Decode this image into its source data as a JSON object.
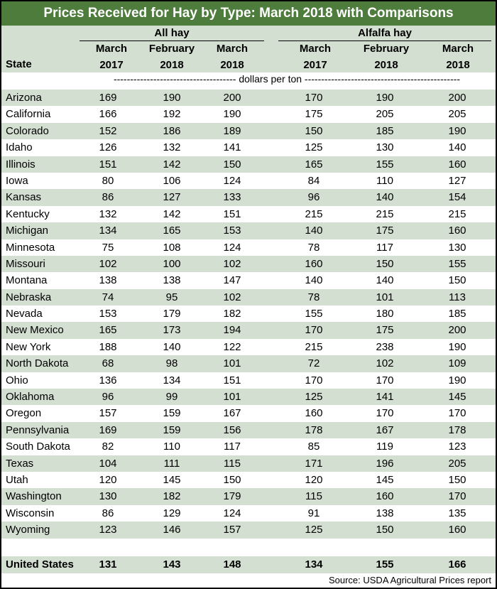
{
  "title": "Prices Received for Hay by Type: March 2018 with Comparisons",
  "groups": {
    "all_hay": "All hay",
    "alfalfa_hay": "Alfalfa hay"
  },
  "columns": {
    "state": "State",
    "c1": [
      "March",
      "2017"
    ],
    "c2": [
      "February",
      "2018"
    ],
    "c3": [
      "March",
      "2018"
    ],
    "c4": [
      "March",
      "2017"
    ],
    "c5": [
      "February",
      "2018"
    ],
    "c6": [
      "March",
      "2018"
    ]
  },
  "units": "------------------------------------- dollars per ton -----------------------------------------------",
  "rows": [
    [
      "Arizona",
      "169",
      "190",
      "200",
      "170",
      "190",
      "200"
    ],
    [
      "California",
      "166",
      "192",
      "190",
      "175",
      "205",
      "205"
    ],
    [
      "Colorado",
      "152",
      "186",
      "189",
      "150",
      "185",
      "190"
    ],
    [
      "Idaho",
      "126",
      "132",
      "141",
      "125",
      "130",
      "140"
    ],
    [
      "Illinois",
      "151",
      "142",
      "150",
      "165",
      "155",
      "160"
    ],
    [
      "Iowa",
      "80",
      "106",
      "124",
      "84",
      "110",
      "127"
    ],
    [
      "Kansas",
      "86",
      "127",
      "133",
      "96",
      "140",
      "154"
    ],
    [
      "Kentucky",
      "132",
      "142",
      "151",
      "215",
      "215",
      "215"
    ],
    [
      "Michigan",
      "134",
      "165",
      "153",
      "140",
      "175",
      "160"
    ],
    [
      "Minnesota",
      "75",
      "108",
      "124",
      "78",
      "117",
      "130"
    ],
    [
      "Missouri",
      "102",
      "100",
      "102",
      "160",
      "150",
      "155"
    ],
    [
      "Montana",
      "138",
      "138",
      "147",
      "140",
      "140",
      "150"
    ],
    [
      "Nebraska",
      "74",
      "95",
      "102",
      "78",
      "101",
      "113"
    ],
    [
      "Nevada",
      "153",
      "179",
      "182",
      "155",
      "180",
      "185"
    ],
    [
      "New Mexico",
      "165",
      "173",
      "194",
      "170",
      "175",
      "200"
    ],
    [
      "New York",
      "188",
      "140",
      "122",
      "215",
      "238",
      "190"
    ],
    [
      "North Dakota",
      "68",
      "98",
      "101",
      "72",
      "102",
      "109"
    ],
    [
      "Ohio",
      "136",
      "134",
      "151",
      "170",
      "170",
      "190"
    ],
    [
      "Oklahoma",
      "96",
      "99",
      "101",
      "125",
      "141",
      "145"
    ],
    [
      "Oregon",
      "157",
      "159",
      "167",
      "160",
      "170",
      "170"
    ],
    [
      "Pennsylvania",
      "169",
      "159",
      "156",
      "178",
      "167",
      "178"
    ],
    [
      "South Dakota",
      "82",
      "110",
      "117",
      "85",
      "119",
      "123"
    ],
    [
      "Texas",
      "104",
      "111",
      "115",
      "171",
      "196",
      "205"
    ],
    [
      "Utah",
      "120",
      "145",
      "150",
      "120",
      "145",
      "150"
    ],
    [
      "Washington",
      "130",
      "182",
      "179",
      "115",
      "160",
      "170"
    ],
    [
      "Wisconsin",
      "86",
      "129",
      "124",
      "91",
      "138",
      "135"
    ],
    [
      "Wyoming",
      "123",
      "146",
      "157",
      "125",
      "150",
      "160"
    ]
  ],
  "total": [
    "United States",
    "131",
    "143",
    "148",
    "134",
    "155",
    "166"
  ],
  "source": "Source: USDA Agricultural Prices report"
}
